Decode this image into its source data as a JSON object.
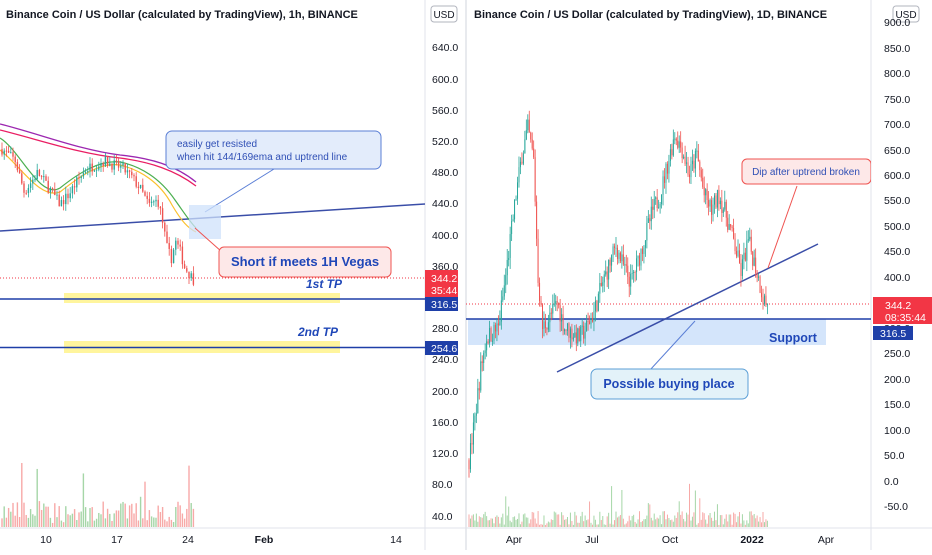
{
  "colors": {
    "up": "#26a69a",
    "down": "#ef5350",
    "volume_up": "#a5d6a7",
    "volume_down": "#f7a9a7",
    "trend_line": "#3a4ea8",
    "level_line": "#1e3fa8",
    "current_price_tag": "#f23645",
    "level_tag": "#1e3fa8",
    "tp_highlight": "#fff59d",
    "zone_fill": "#cfe2fb",
    "ema_144": "#9c27b0",
    "ema_169": "#e91e63",
    "ema_fast": "#4caf50",
    "ema_yellow": "#fbc02d"
  },
  "left_chart": {
    "title": "Binance Coin / US Dollar (calculated by TradingView), 1h, BINANCE",
    "currency_badge": "USD",
    "y_ticks": [
      "640.0",
      "600.0",
      "560.0",
      "520.0",
      "480.0",
      "440.0",
      "400.0",
      "360.0",
      "320.0",
      "280.0",
      "240.0",
      "200.0",
      "160.0",
      "120.0",
      "80.0",
      "40.0"
    ],
    "x_ticks": [
      "10",
      "17",
      "24",
      "Feb",
      "14"
    ],
    "current_price": "344.2",
    "countdown": "35:44",
    "level_1": "316.5",
    "level_2": "254.6",
    "tp1_label": "1st TP",
    "tp2_label": "2nd TP",
    "note_resisted_line1": "easily get resisted",
    "note_resisted_line2": "when hit 144/169ema and uptrend line",
    "note_short": "Short if meets 1H Vegas"
  },
  "right_chart": {
    "title": "Binance Coin / US Dollar (calculated by TradingView), 1D, BINANCE",
    "currency_badge": "USD",
    "y_ticks": [
      "900.0",
      "850.0",
      "800.0",
      "750.0",
      "700.0",
      "650.0",
      "600.0",
      "550.0",
      "500.0",
      "450.0",
      "400.0",
      "350.0",
      "300.0",
      "250.0",
      "200.0",
      "150.0",
      "100.0",
      "50.0",
      "0.0",
      "-50.0"
    ],
    "x_ticks": [
      "Apr",
      "Jul",
      "Oct",
      "2022",
      "Apr"
    ],
    "current_price": "344.2",
    "countdown": "08:35:44",
    "level_1": "316.5",
    "note_dip": "Dip after uptrend broken",
    "note_support": "Support",
    "note_buy": "Possible buying place"
  },
  "chart_data": [
    {
      "type": "candlestick",
      "title": "Binance Coin / US Dollar (calculated by TradingView), 1h, BINANCE",
      "x_ticks": [
        "10",
        "17",
        "24",
        "Feb",
        "14"
      ],
      "y_ticks": [
        640,
        600,
        560,
        520,
        480,
        440,
        400,
        360,
        320,
        280,
        240,
        200,
        160,
        120,
        80,
        40
      ],
      "ylim": [
        20,
        665
      ],
      "price_path": [
        [
          0,
          510
        ],
        [
          3,
          495
        ],
        [
          5,
          455
        ],
        [
          8,
          480
        ],
        [
          10,
          465
        ],
        [
          13,
          440
        ],
        [
          15,
          452
        ],
        [
          17,
          470
        ],
        [
          19,
          485
        ],
        [
          21,
          490
        ],
        [
          23,
          495
        ],
        [
          25,
          490
        ],
        [
          27,
          486
        ],
        [
          29,
          475
        ],
        [
          31,
          460
        ],
        [
          33,
          438
        ],
        [
          35,
          445
        ],
        [
          36,
          420
        ],
        [
          37,
          385
        ],
        [
          38,
          370
        ],
        [
          39,
          392
        ],
        [
          40,
          380
        ],
        [
          41,
          360
        ],
        [
          43,
          344
        ]
      ],
      "current_price": 344.2,
      "levels": [
        316.5,
        254.6
      ],
      "trend_line": [
        [
          0,
          400
        ],
        [
          66,
          440
        ]
      ]
    },
    {
      "type": "candlestick",
      "title": "Binance Coin / US Dollar (calculated by TradingView), 1D, BINANCE",
      "x_ticks": [
        "Apr",
        "Jul",
        "Oct",
        "2022",
        "Apr"
      ],
      "y_ticks": [
        900,
        850,
        800,
        750,
        700,
        650,
        600,
        550,
        500,
        450,
        400,
        350,
        300,
        250,
        200,
        150,
        100,
        50,
        0,
        -50
      ],
      "ylim": [
        -80,
        930
      ],
      "price_path": [
        [
          0,
          40
        ],
        [
          4,
          120
        ],
        [
          8,
          220
        ],
        [
          12,
          280
        ],
        [
          16,
          290
        ],
        [
          20,
          300
        ],
        [
          24,
          380
        ],
        [
          28,
          470
        ],
        [
          32,
          560
        ],
        [
          36,
          640
        ],
        [
          40,
          690
        ],
        [
          44,
          630
        ],
        [
          47,
          400
        ],
        [
          50,
          300
        ],
        [
          55,
          320
        ],
        [
          60,
          350
        ],
        [
          65,
          300
        ],
        [
          70,
          290
        ],
        [
          75,
          280
        ],
        [
          80,
          300
        ],
        [
          85,
          330
        ],
        [
          90,
          380
        ],
        [
          95,
          420
        ],
        [
          100,
          460
        ],
        [
          105,
          420
        ],
        [
          110,
          390
        ],
        [
          115,
          430
        ],
        [
          120,
          480
        ],
        [
          125,
          530
        ],
        [
          130,
          560
        ],
        [
          135,
          620
        ],
        [
          140,
          680
        ],
        [
          145,
          650
        ],
        [
          150,
          600
        ],
        [
          155,
          640
        ],
        [
          160,
          560
        ],
        [
          165,
          530
        ],
        [
          170,
          560
        ],
        [
          175,
          520
        ],
        [
          180,
          470
        ],
        [
          185,
          410
        ],
        [
          190,
          470
        ],
        [
          195,
          420
        ],
        [
          200,
          360
        ],
        [
          203,
          344
        ]
      ],
      "current_price": 344.2,
      "levels": [
        316.5
      ],
      "support_zone": [
        265,
        315
      ],
      "trend_line": [
        [
          60,
          222
        ],
        [
          240,
          465
        ]
      ]
    }
  ]
}
